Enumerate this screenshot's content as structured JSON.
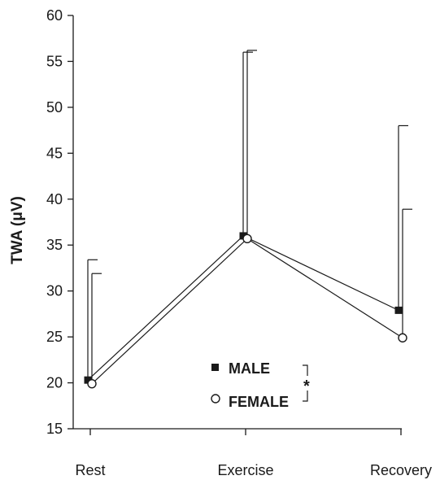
{
  "chart_data": {
    "type": "line",
    "title": "",
    "xlabel": "",
    "ylabel": "TWA (μV)",
    "ylim": [
      15,
      60
    ],
    "yticks": [
      15,
      20,
      25,
      30,
      35,
      40,
      45,
      50,
      55,
      60
    ],
    "categories": [
      "Rest",
      "Exercise",
      "Recovery"
    ],
    "grid": false,
    "legend_position": "bottom-center",
    "series": [
      {
        "name": "MALE",
        "marker": "filled-square",
        "color": "#1a1a1a",
        "values": [
          20.3,
          36.0,
          27.9
        ],
        "error_upper": [
          33.4,
          56.0,
          48.0
        ]
      },
      {
        "name": "FEMALE",
        "marker": "open-circle",
        "color": "#1a1a1a",
        "values": [
          19.9,
          35.7,
          24.9
        ],
        "error_upper": [
          31.9,
          56.2,
          38.9
        ]
      }
    ],
    "annotations": [
      {
        "text": "*",
        "meaning": "significance bracket between series"
      }
    ]
  }
}
